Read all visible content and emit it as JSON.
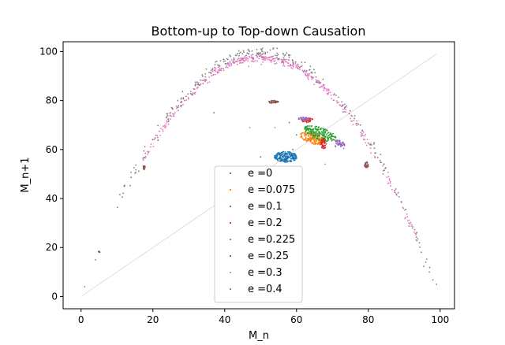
{
  "chart_data": {
    "type": "scatter",
    "title": "Bottom-up to Top-down Causation",
    "xlabel": "M_n",
    "ylabel": "M_n+1",
    "xlim": [
      -5,
      104
    ],
    "ylim": [
      -5,
      104
    ],
    "xticks": [
      0,
      20,
      40,
      60,
      80,
      100
    ],
    "yticks": [
      0,
      20,
      40,
      60,
      80,
      100
    ],
    "grid": false,
    "legend_position": "lower-center",
    "reference_line": {
      "x": [
        0,
        99
      ],
      "y": [
        0,
        99
      ],
      "color": "#cccccc"
    },
    "series": [
      {
        "name": "e =0",
        "color": "#1f77b4",
        "clusters": [
          {
            "cx": 57,
            "cy": 57,
            "rx": 3.2,
            "ry": 2.2,
            "n": 220
          }
        ],
        "points": [
          [
            12,
            45
          ],
          [
            37,
            75
          ],
          [
            50,
            57
          ],
          [
            59,
            60
          ]
        ]
      },
      {
        "name": "e =0.075",
        "color": "#ff7f0e",
        "clusters": [
          {
            "cx": 64.5,
            "cy": 64.5,
            "rx": 4.0,
            "ry": 2.0,
            "angle": -30,
            "n": 190
          }
        ],
        "points": [
          [
            47,
            69
          ],
          [
            54,
            69
          ],
          [
            68,
            54
          ]
        ]
      },
      {
        "name": "e =0.1",
        "color": "#2ca02c",
        "clusters": [
          {
            "cx": 66.5,
            "cy": 66.5,
            "rx": 5.0,
            "ry": 2.4,
            "angle": -30,
            "n": 200
          }
        ],
        "points": [
          [
            60,
            66
          ],
          [
            58,
            71
          ]
        ]
      },
      {
        "name": "e =0.2",
        "color": "#d62728",
        "clusters": [
          {
            "cx": 67.5,
            "cy": 62.5,
            "rx": 0.8,
            "ry": 2.2,
            "n": 40
          },
          {
            "cx": 63,
            "cy": 72,
            "rx": 1.6,
            "ry": 1.0,
            "n": 40
          }
        ],
        "points": []
      },
      {
        "name": "e =0.225",
        "color": "#9467bd",
        "clusters": [
          {
            "cx": 72,
            "cy": 62,
            "rx": 1.4,
            "ry": 2.0,
            "angle": 30,
            "n": 50
          },
          {
            "cx": 62,
            "cy": 72.5,
            "rx": 1.5,
            "ry": 0.8,
            "n": 35
          }
        ],
        "points": []
      },
      {
        "name": "e =0.25",
        "color": "#8c564b",
        "clusters": [
          {
            "cx": 53.5,
            "cy": 79.5,
            "rx": 1.5,
            "ry": 0.6,
            "n": 40
          },
          {
            "cx": 79.5,
            "cy": 53.5,
            "rx": 0.6,
            "ry": 1.5,
            "n": 30
          },
          {
            "cx": 17.5,
            "cy": 52.5,
            "rx": 0.4,
            "ry": 1.0,
            "n": 12
          },
          {
            "cx": 5,
            "cy": 18,
            "rx": 0.3,
            "ry": 0.5,
            "n": 8
          }
        ],
        "points": []
      },
      {
        "name": "e =0.3",
        "color": "#e377c2",
        "curve": {
          "k": 3.9,
          "xmin": 17,
          "xmax": 94,
          "n": 420,
          "jitter": 0.8,
          "weight_peak": 48
        },
        "points": []
      },
      {
        "name": "e =0.4",
        "color": "#7f7f7f",
        "curve": {
          "k": 3.98,
          "xmin": 10,
          "xmax": 99,
          "n": 260,
          "jitter": 1.2,
          "weight_peak": 45
        },
        "points": [
          [
            1,
            4
          ],
          [
            4,
            15
          ],
          [
            99,
            5
          ],
          [
            97,
            10
          ],
          [
            96,
            14
          ],
          [
            54,
            95
          ],
          [
            55,
            97
          ],
          [
            56,
            96
          ]
        ]
      }
    ]
  }
}
